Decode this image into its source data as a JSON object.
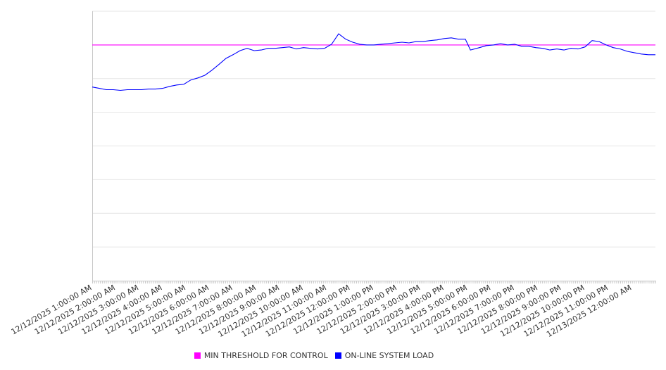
{
  "chart_data": {
    "type": "line",
    "title": "",
    "xlabel": "",
    "ylabel": "",
    "x_unit": "minutes after 12/12/2025 1:00:00 AM",
    "xlim": [
      0,
      1440
    ],
    "ylim": [
      0,
      8
    ],
    "grid": true,
    "legend_placement": "bottom-center",
    "tick_labels": [
      "12/12/2025 1:00:00 AM",
      "12/12/2025 2:00:00 AM",
      "12/12/2025 3:00:00 AM",
      "12/12/2025 4:00:00 AM",
      "12/12/2025 5:00:00 AM",
      "12/12/2025 6:00:00 AM",
      "12/12/2025 7:00:00 AM",
      "12/12/2025 8:00:00 AM",
      "12/12/2025 9:00:00 AM",
      "12/12/2025 10:00:00 AM",
      "12/12/2025 11:00:00 AM",
      "12/12/2025 12:00:00 PM",
      "12/12/2025 1:00:00 PM",
      "12/12/2025 2:00:00 PM",
      "12/12/2025 3:00:00 PM",
      "12/12/2025 4:00:00 PM",
      "12/12/2025 5:00:00 PM",
      "12/12/2025 6:00:00 PM",
      "12/12/2025 7:00:00 PM",
      "12/12/2025 8:00:00 PM",
      "12/12/2025 9:00:00 PM",
      "12/12/2025 10:00:00 PM",
      "12/12/2025 11:00:00 PM",
      "12/13/2025 12:00:00 AM"
    ],
    "series": [
      {
        "name": "MIN THRESHOLD FOR CONTROL",
        "color": "#ff00ff",
        "x": [
          0,
          1440
        ],
        "values": [
          7,
          7
        ]
      },
      {
        "name": "ON-LINE SYSTEM LOAD",
        "color": "#0000ff",
        "x": [
          0,
          18,
          36,
          54,
          72,
          90,
          108,
          126,
          144,
          162,
          180,
          198,
          216,
          234,
          252,
          270,
          288,
          306,
          324,
          342,
          360,
          378,
          396,
          414,
          432,
          450,
          468,
          486,
          504,
          522,
          540,
          558,
          576,
          594,
          612,
          630,
          648,
          666,
          684,
          702,
          720,
          738,
          756,
          774,
          792,
          810,
          828,
          846,
          864,
          882,
          900,
          918,
          936,
          954,
          967,
          990,
          1008,
          1026,
          1044,
          1062,
          1080,
          1098,
          1116,
          1134,
          1152,
          1170,
          1188,
          1206,
          1224,
          1242,
          1260,
          1278,
          1296,
          1314,
          1332,
          1350,
          1368,
          1386,
          1404,
          1422,
          1440
        ],
        "values": [
          5.75,
          5.71,
          5.67,
          5.67,
          5.65,
          5.67,
          5.67,
          5.67,
          5.69,
          5.69,
          5.71,
          5.77,
          5.81,
          5.83,
          5.96,
          6.02,
          6.1,
          6.25,
          6.42,
          6.6,
          6.71,
          6.83,
          6.9,
          6.83,
          6.85,
          6.9,
          6.9,
          6.92,
          6.94,
          6.88,
          6.92,
          6.9,
          6.88,
          6.9,
          7.02,
          7.33,
          7.17,
          7.08,
          7.02,
          7.0,
          7.0,
          7.02,
          7.04,
          7.06,
          7.08,
          7.06,
          7.1,
          7.1,
          7.13,
          7.15,
          7.19,
          7.21,
          7.17,
          7.17,
          6.85,
          6.92,
          6.98,
          7.0,
          7.04,
          7.0,
          7.02,
          6.96,
          6.96,
          6.92,
          6.9,
          6.85,
          6.88,
          6.85,
          6.9,
          6.88,
          6.94,
          7.13,
          7.1,
          7.0,
          6.92,
          6.88,
          6.81,
          6.77,
          6.73,
          6.71,
          6.71
        ]
      }
    ]
  }
}
